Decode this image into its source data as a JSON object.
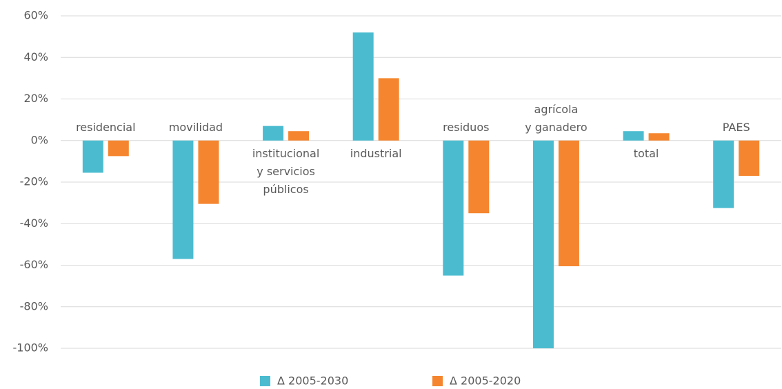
{
  "chart_data": {
    "type": "bar",
    "categories": [
      "residencial",
      "movilidad",
      "institucional\ny servicios\npúblicos",
      "industrial",
      "residuos",
      "agrícola\ny ganadero",
      "total",
      "PAES"
    ],
    "series": [
      {
        "name": "Δ 2005-2030",
        "color": "#4bbcd0",
        "values": [
          -15.5,
          -57,
          7,
          52,
          -65,
          -100,
          4.5,
          -32.5
        ]
      },
      {
        "name": "Δ 2005-2020",
        "color": "#f5862f",
        "values": [
          -7.5,
          -30.5,
          4.5,
          30,
          -35,
          -60.5,
          3.5,
          -17
        ]
      }
    ],
    "ylim": [
      -100,
      60
    ],
    "yticks": [
      {
        "value": -100,
        "label": "-100%"
      },
      {
        "value": -80,
        "label": "-80%"
      },
      {
        "value": -60,
        "label": "-60%"
      },
      {
        "value": -40,
        "label": "-40%"
      },
      {
        "value": -20,
        "label": "-20%"
      },
      {
        "value": 0,
        "label": "0%"
      },
      {
        "value": 20,
        "label": "20%"
      },
      {
        "value": 40,
        "label": "40%"
      },
      {
        "value": 60,
        "label": "60%"
      }
    ],
    "grid": true,
    "legend": "bottom"
  }
}
